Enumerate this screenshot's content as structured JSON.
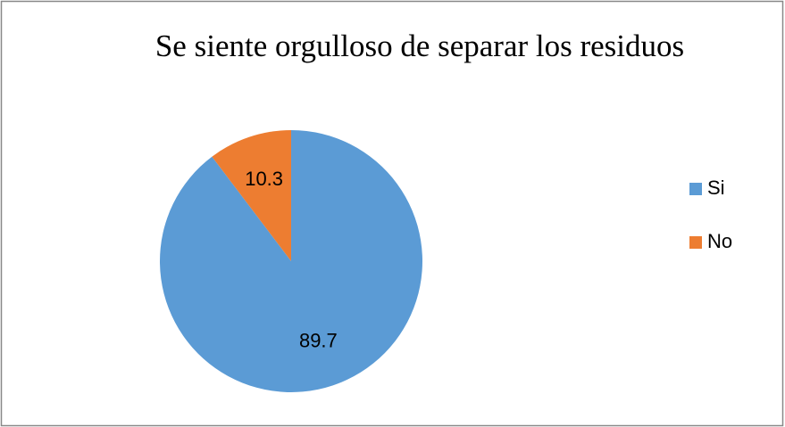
{
  "chart_data": {
    "type": "pie",
    "title": "Se siente orgulloso de separar los residuos",
    "categories": [
      "Si",
      "No"
    ],
    "values": [
      89.7,
      10.3
    ],
    "colors": [
      "#5b9bd5",
      "#ed7d31"
    ],
    "legend": "right"
  }
}
